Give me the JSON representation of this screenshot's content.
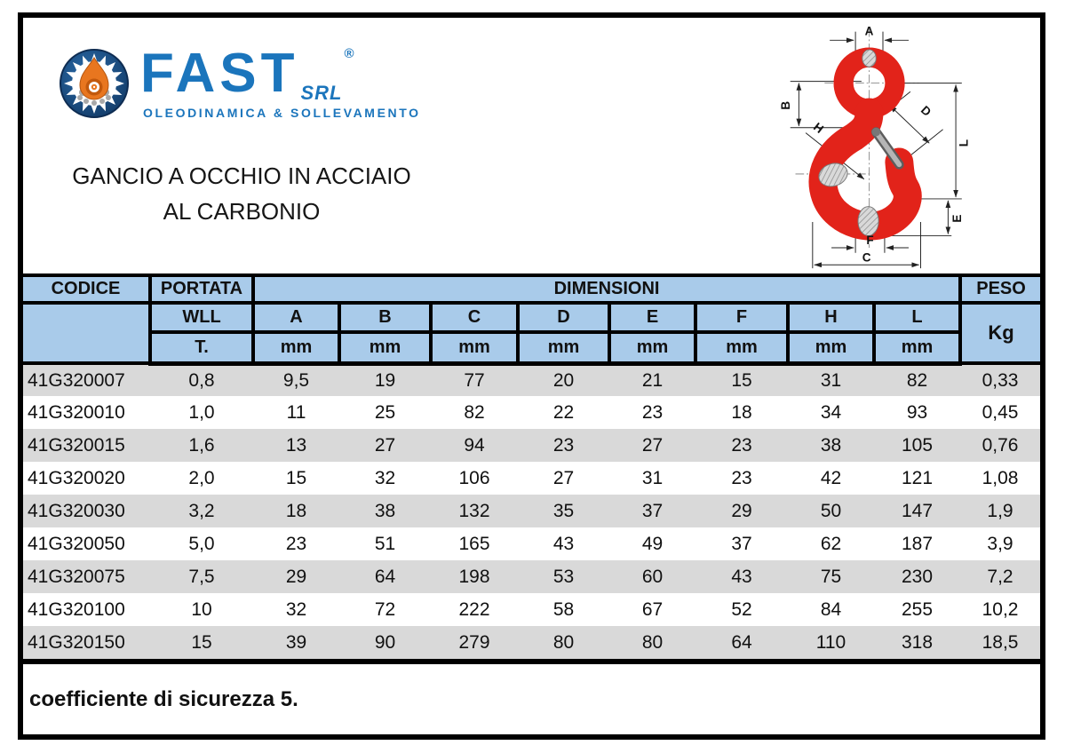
{
  "colors": {
    "brand": "#1B75BC",
    "navy": "#16437A",
    "orange": "#E8761F",
    "hookred": "#E2231A",
    "headerbg": "#A9CBEA",
    "stripe": "#D9D9D9",
    "ink": "#111111"
  },
  "brand": {
    "name": "FAST",
    "suffix": "SRL",
    "registered": "®",
    "tagline": "OLEODINAMICA & SOLLEVAMENTO"
  },
  "title": {
    "line1": "GANCIO A OCCHIO IN ACCIAIO",
    "line2": "AL CARBONIO"
  },
  "diagram": {
    "dim_labels": [
      "A",
      "B",
      "C",
      "D",
      "E",
      "F",
      "H",
      "L"
    ]
  },
  "table": {
    "header": {
      "codice": "CODICE",
      "portata": "PORTATA",
      "dimensioni": "DIMENSIONI",
      "peso": "PESO",
      "wll": "WLL",
      "t": "T.",
      "kg": "Kg",
      "unit": "mm",
      "dim_columns": [
        "A",
        "B",
        "C",
        "D",
        "E",
        "F",
        "H",
        "L"
      ]
    },
    "rows": [
      [
        "41G320007",
        "0,8",
        "9,5",
        "19",
        "77",
        "20",
        "21",
        "15",
        "31",
        "82",
        "0,33"
      ],
      [
        "41G320010",
        "1,0",
        "11",
        "25",
        "82",
        "22",
        "23",
        "18",
        "34",
        "93",
        "0,45"
      ],
      [
        "41G320015",
        "1,6",
        "13",
        "27",
        "94",
        "23",
        "27",
        "23",
        "38",
        "105",
        "0,76"
      ],
      [
        "41G320020",
        "2,0",
        "15",
        "32",
        "106",
        "27",
        "31",
        "23",
        "42",
        "121",
        "1,08"
      ],
      [
        "41G320030",
        "3,2",
        "18",
        "38",
        "132",
        "35",
        "37",
        "29",
        "50",
        "147",
        "1,9"
      ],
      [
        "41G320050",
        "5,0",
        "23",
        "51",
        "165",
        "43",
        "49",
        "37",
        "62",
        "187",
        "3,9"
      ],
      [
        "41G320075",
        "7,5",
        "29",
        "64",
        "198",
        "53",
        "60",
        "43",
        "75",
        "230",
        "7,2"
      ],
      [
        "41G320100",
        "10",
        "32",
        "72",
        "222",
        "58",
        "67",
        "52",
        "84",
        "255",
        "10,2"
      ],
      [
        "41G320150",
        "15",
        "39",
        "90",
        "279",
        "80",
        "80",
        "64",
        "110",
        "318",
        "18,5"
      ]
    ]
  },
  "footer": {
    "note": "coefficiente di sicurezza 5."
  }
}
